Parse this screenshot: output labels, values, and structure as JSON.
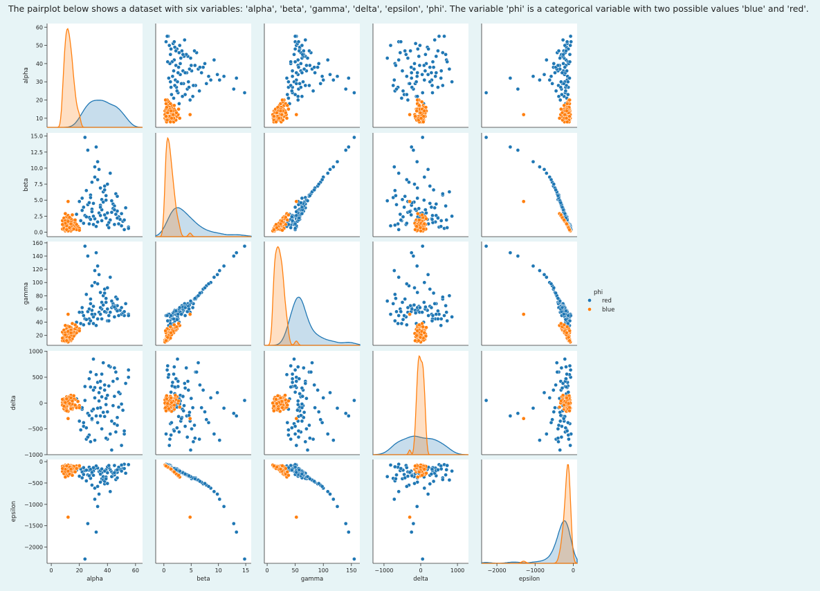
{
  "caption": "The pairplot below shows a dataset with six variables: 'alpha', 'beta', 'gamma', 'delta', 'epsilon', 'phi'. The variable 'phi' is a categorical variable with two possible values 'blue' and 'red'.",
  "colors": {
    "red": "#1f77b4",
    "blue": "#ff7f0e",
    "panel_bg": "#ffffff",
    "page_bg": "#e7f4f6"
  },
  "chart_data": {
    "type": "scatter",
    "variables": [
      "alpha",
      "beta",
      "gamma",
      "delta",
      "epsilon"
    ],
    "hue": "phi",
    "legend": {
      "title": "phi",
      "entries": [
        "red",
        "blue"
      ],
      "placement": "right"
    },
    "axes": {
      "alpha": {
        "lim": [
          5,
          62
        ],
        "ticks": [
          10,
          20,
          30,
          40,
          50,
          60
        ],
        "x_ticks": [
          0,
          20,
          40,
          60
        ],
        "x_lim": [
          -3,
          65
        ]
      },
      "beta": {
        "lim": [
          -0.7,
          15.5
        ],
        "ticks": [
          0.0,
          2.5,
          5.0,
          7.5,
          10.0,
          12.5,
          15.0
        ],
        "tick_labels": [
          "0.0",
          "2.5",
          "5.0",
          "7.5",
          "10.0",
          "12.5",
          "15.0"
        ],
        "x_ticks": [
          0,
          5,
          10,
          15
        ],
        "x_lim": [
          -1.5,
          16
        ]
      },
      "gamma": {
        "lim": [
          5,
          162
        ],
        "ticks": [
          20,
          40,
          60,
          80,
          100,
          120,
          140,
          160
        ],
        "x_ticks": [
          0,
          50,
          100,
          150
        ],
        "x_lim": [
          -5,
          165
        ]
      },
      "delta": {
        "lim": [
          -1000,
          1010
        ],
        "ticks": [
          -1000,
          -500,
          0,
          500,
          1000
        ],
        "tick_labels": [
          "−1000",
          "−500",
          "0",
          "500",
          "1000"
        ],
        "x_ticks": [
          -1000,
          0,
          1000
        ],
        "x_tick_labels": [
          "−1000",
          "0",
          "1000"
        ],
        "x_lim": [
          -1300,
          1300
        ]
      },
      "epsilon": {
        "lim": [
          -2380,
          50
        ],
        "ticks": [
          -2000,
          -1500,
          -1000,
          -500,
          0
        ],
        "tick_labels": [
          "−2000",
          "−1500",
          "−1000",
          "−500",
          "0"
        ],
        "x_ticks": [
          -2000,
          -1000,
          0
        ],
        "x_tick_labels": [
          "−2000",
          "−1000",
          "0"
        ],
        "x_lim": [
          -2400,
          100
        ]
      }
    },
    "series": [
      {
        "name": "red",
        "points": [
          [
            22,
            3.4,
            55,
            -120,
            -240
          ],
          [
            31,
            2.1,
            52,
            300,
            -160
          ],
          [
            45,
            1.2,
            48,
            -400,
            -90
          ],
          [
            28,
            5.8,
            75,
            600,
            -380
          ],
          [
            35,
            4.2,
            62,
            -250,
            -300
          ],
          [
            18,
            2.8,
            40,
            80,
            -200
          ],
          [
            52,
            0.4,
            50,
            -600,
            -60
          ],
          [
            40,
            3.0,
            60,
            150,
            -260
          ],
          [
            25,
            6.5,
            82,
            -700,
            -450
          ],
          [
            33,
            1.6,
            45,
            400,
            -150
          ],
          [
            48,
            2.4,
            58,
            -80,
            -170
          ],
          [
            38,
            7.2,
            90,
            250,
            -520
          ],
          [
            20,
            4.8,
            55,
            -350,
            -340
          ],
          [
            55,
            0.8,
            52,
            500,
            -70
          ],
          [
            29,
            3.6,
            58,
            -150,
            -280
          ],
          [
            42,
            1.9,
            55,
            700,
            -190
          ],
          [
            36,
            5.1,
            70,
            -500,
            -400
          ],
          [
            24,
            2.6,
            45,
            320,
            -210
          ],
          [
            47,
            3.3,
            65,
            -280,
            -250
          ],
          [
            31,
            8.6,
            100,
            100,
            -620
          ],
          [
            27,
            1.3,
            38,
            -620,
            -130
          ],
          [
            44,
            4.4,
            68,
            420,
            -330
          ],
          [
            39,
            2.2,
            55,
            -30,
            -190
          ],
          [
            50,
            1.0,
            52,
            -820,
            -80
          ],
          [
            34,
            9.8,
            112,
            200,
            -760
          ],
          [
            23,
            3.9,
            50,
            -450,
            -300
          ],
          [
            46,
            6.0,
            78,
            600,
            -420
          ],
          [
            30,
            2.5,
            48,
            850,
            -220
          ],
          [
            37,
            4.7,
            66,
            -180,
            -350
          ],
          [
            41,
            1.5,
            50,
            330,
            -140
          ],
          [
            26,
            12.8,
            140,
            -200,
            -1450
          ],
          [
            43,
            3.1,
            62,
            -350,
            -240
          ],
          [
            32,
            0.9,
            35,
            550,
            -100
          ],
          [
            28,
            5.4,
            68,
            -750,
            -390
          ],
          [
            49,
            2.0,
            58,
            180,
            -180
          ],
          [
            35,
            6.9,
            85,
            -90,
            -480
          ],
          [
            21,
            1.8,
            38,
            -520,
            -170
          ],
          [
            53,
            3.8,
            68,
            380,
            -270
          ],
          [
            38,
            2.7,
            56,
            -260,
            -220
          ],
          [
            33,
            11.0,
            125,
            -100,
            -1050
          ],
          [
            45,
            4.1,
            65,
            680,
            -310
          ],
          [
            29,
            7.8,
            95,
            -320,
            -550
          ],
          [
            24,
            14.8,
            155,
            50,
            -2280
          ],
          [
            40,
            1.1,
            42,
            -700,
            -120
          ],
          [
            36,
            3.5,
            60,
            120,
            -260
          ],
          [
            47,
            5.6,
            75,
            -430,
            -380
          ],
          [
            27,
            2.3,
            45,
            470,
            -200
          ],
          [
            51,
            1.7,
            54,
            -140,
            -160
          ],
          [
            30,
            4.5,
            64,
            250,
            -320
          ],
          [
            42,
            9.2,
            108,
            -600,
            -700
          ],
          [
            34,
            3.0,
            55,
            40,
            -230
          ],
          [
            37,
            6.3,
            80,
            780,
            -430
          ],
          [
            23,
            1.4,
            36,
            -380,
            -140
          ],
          [
            46,
            2.8,
            60,
            -560,
            -210
          ],
          [
            39,
            5.0,
            70,
            90,
            -360
          ],
          [
            32,
            13.3,
            145,
            -250,
            -1650
          ],
          [
            28,
            2.0,
            42,
            310,
            -180
          ],
          [
            44,
            3.7,
            64,
            -50,
            -270
          ],
          [
            55,
            0.6,
            50,
            640,
            -70
          ],
          [
            26,
            4.3,
            56,
            -660,
            -310
          ],
          [
            40,
            7.5,
            92,
            -170,
            -510
          ],
          [
            35,
            2.6,
            52,
            420,
            -210
          ],
          [
            31,
            10.2,
            118,
            -720,
            -880
          ],
          [
            48,
            1.3,
            50,
            210,
            -130
          ],
          [
            22,
            5.3,
            62,
            -90,
            -380
          ],
          [
            43,
            4.9,
            72,
            -910,
            -350
          ],
          [
            36,
            1.8,
            45,
            560,
            -170
          ],
          [
            29,
            3.2,
            52,
            -300,
            -250
          ],
          [
            50,
            2.9,
            62,
            -20,
            -220
          ],
          [
            38,
            6.6,
            84,
            350,
            -460
          ],
          [
            25,
            2.4,
            44,
            -480,
            -200
          ],
          [
            45,
            3.5,
            63,
            130,
            -260
          ],
          [
            33,
            8.2,
            98,
            -380,
            -580
          ],
          [
            41,
            0.7,
            42,
            720,
            -90
          ],
          [
            27,
            4.6,
            60,
            -240,
            -330
          ],
          [
            52,
            1.9,
            56,
            -540,
            -160
          ],
          [
            35,
            3.9,
            62,
            290,
            -290
          ],
          [
            30,
            1.2,
            38,
            -120,
            -140
          ],
          [
            39,
            5.7,
            76,
            -680,
            -400
          ],
          [
            47,
            2.2,
            57,
            470,
            -190
          ]
        ]
      },
      {
        "name": "blue",
        "points": [
          [
            10,
            0.6,
            15,
            -40,
            -120
          ],
          [
            12,
            1.1,
            20,
            30,
            -150
          ],
          [
            14,
            0.3,
            12,
            -80,
            -90
          ],
          [
            9,
            1.5,
            22,
            60,
            -200
          ],
          [
            11,
            0.9,
            18,
            -20,
            -140
          ],
          [
            13,
            2.0,
            28,
            90,
            -260
          ],
          [
            15,
            0.5,
            16,
            -60,
            -110
          ],
          [
            8,
            1.8,
            25,
            10,
            -230
          ],
          [
            10,
            0.2,
            11,
            -100,
            -80
          ],
          [
            12,
            1.3,
            22,
            50,
            -170
          ],
          [
            16,
            0.8,
            20,
            -30,
            -130
          ],
          [
            11,
            2.4,
            30,
            120,
            -300
          ],
          [
            14,
            1.0,
            21,
            -90,
            -150
          ],
          [
            9,
            0.4,
            13,
            20,
            -100
          ],
          [
            13,
            1.6,
            26,
            -10,
            -210
          ],
          [
            17,
            0.7,
            22,
            70,
            -120
          ],
          [
            10,
            1.2,
            19,
            -50,
            -160
          ],
          [
            12,
            0.5,
            14,
            110,
            -110
          ],
          [
            15,
            1.9,
            29,
            -120,
            -240
          ],
          [
            11,
            0.8,
            17,
            40,
            -130
          ],
          [
            18,
            0.4,
            24,
            -70,
            -100
          ],
          [
            9,
            2.2,
            28,
            80,
            -280
          ],
          [
            13,
            0.6,
            16,
            -30,
            -120
          ],
          [
            16,
            1.4,
            27,
            100,
            -190
          ],
          [
            10,
            1.0,
            18,
            -140,
            -140
          ],
          [
            12,
            2.6,
            34,
            0,
            -330
          ],
          [
            14,
            0.2,
            13,
            60,
            -90
          ],
          [
            11,
            1.7,
            24,
            -80,
            -220
          ],
          [
            19,
            0.9,
            28,
            30,
            -140
          ],
          [
            8,
            0.5,
            12,
            -40,
            -110
          ],
          [
            13,
            1.2,
            22,
            130,
            -170
          ],
          [
            15,
            0.4,
            15,
            -100,
            -100
          ],
          [
            12,
            1.9,
            27,
            10,
            -250
          ],
          [
            10,
            0.7,
            15,
            70,
            -120
          ],
          [
            17,
            1.5,
            30,
            -60,
            -200
          ],
          [
            11,
            0.3,
            11,
            -20,
            -90
          ],
          [
            14,
            2.1,
            32,
            150,
            -270
          ],
          [
            9,
            1.1,
            17,
            -110,
            -150
          ],
          [
            13,
            0.8,
            19,
            40,
            -130
          ],
          [
            20,
            0.6,
            30,
            -50,
            -120
          ],
          [
            12,
            1.4,
            23,
            -160,
            -180
          ],
          [
            16,
            1.0,
            25,
            90,
            -150
          ],
          [
            10,
            1.8,
            24,
            -30,
            -230
          ],
          [
            15,
            0.7,
            20,
            20,
            -120
          ],
          [
            11,
            1.3,
            20,
            -70,
            -170
          ],
          [
            13,
            0.4,
            14,
            110,
            -100
          ],
          [
            18,
            1.2,
            33,
            -90,
            -160
          ],
          [
            9,
            0.9,
            14,
            50,
            -140
          ],
          [
            14,
            1.6,
            28,
            -40,
            -210
          ],
          [
            12,
            0.2,
            10,
            0,
            -80
          ],
          [
            10,
            2.9,
            35,
            -80,
            -360
          ],
          [
            16,
            0.5,
            19,
            140,
            -110
          ],
          [
            11,
            1.0,
            18,
            -130,
            -150
          ],
          [
            13,
            2.3,
            33,
            60,
            -290
          ],
          [
            15,
            1.1,
            24,
            -20,
            -160
          ],
          [
            9,
            0.6,
            12,
            -60,
            -120
          ],
          [
            12,
            1.7,
            26,
            30,
            -220
          ],
          [
            14,
            0.9,
            20,
            -110,
            -140
          ],
          [
            11,
            0.5,
            13,
            80,
            -110
          ],
          [
            17,
            1.9,
            36,
            -40,
            -240
          ],
          [
            10,
            1.4,
            21,
            10,
            -180
          ],
          [
            20,
            0.3,
            27,
            -90,
            -95
          ],
          [
            8,
            1.2,
            16,
            70,
            -160
          ],
          [
            13,
            0.7,
            17,
            -10,
            -125
          ],
          [
            12,
            4.8,
            52,
            -300,
            -1300
          ],
          [
            15,
            2.7,
            38,
            40,
            -320
          ],
          [
            11,
            0.4,
            12,
            -150,
            -100
          ],
          [
            14,
            1.3,
            24,
            100,
            -175
          ]
        ]
      }
    ]
  }
}
